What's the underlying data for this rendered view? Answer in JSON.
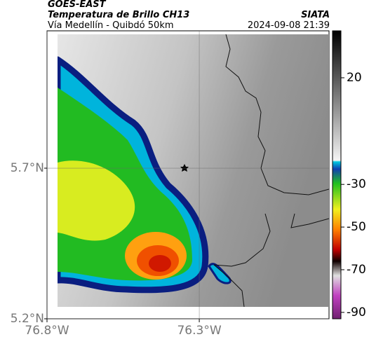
{
  "header": {
    "satellite": "GOES-EAST",
    "product": "Temperatura de Brillo CH13",
    "route": "Vía Medellín - Quibdó 50km",
    "source": "SIATA",
    "timestamp": "2024-09-08 21:39"
  },
  "map": {
    "xlim": [
      -76.8,
      -75.874
    ],
    "ylim": [
      5.2,
      6.156
    ],
    "xticks": [
      {
        "value": -76.8,
        "label": "76.8°W"
      },
      {
        "value": -76.3,
        "label": "76.3°W"
      }
    ],
    "yticks": [
      {
        "value": 5.2,
        "label": "5.2°N"
      },
      {
        "value": 5.7,
        "label": "5.7°N"
      }
    ],
    "grid": true
  },
  "colorbar": {
    "lim": [
      -93,
      42
    ],
    "ticks": [
      20,
      -30,
      -50,
      -70,
      -90
    ]
  }
}
